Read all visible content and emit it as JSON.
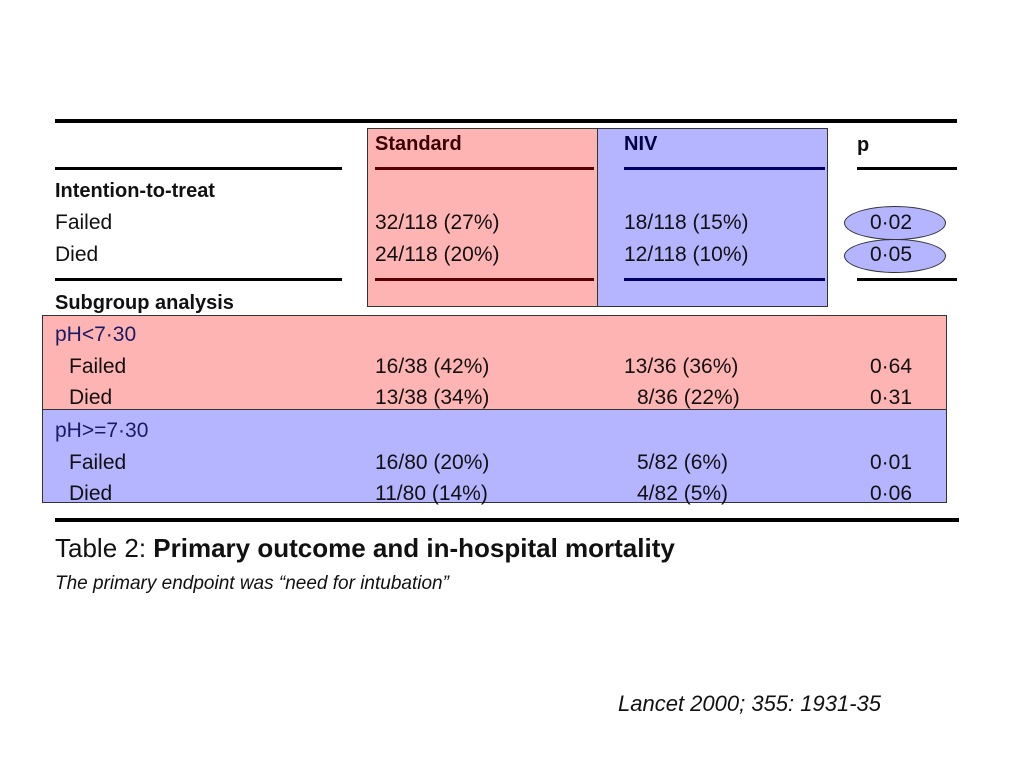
{
  "colors": {
    "standard_fill": "#ffb4b4",
    "niv_fill": "#b4b4ff",
    "standard_line": "#5a0000",
    "niv_line": "#000066"
  },
  "headers": {
    "standard": "Standard",
    "niv": "NIV",
    "p": "p"
  },
  "itt": {
    "title": "Intention-to-treat",
    "rows": [
      {
        "label": "Failed",
        "standard": "32/118 (27%)",
        "niv": "18/118 (15%)",
        "p": "0·02"
      },
      {
        "label": "Died",
        "standard": "24/118 (20%)",
        "niv": "12/118 (10%)",
        "p": "0·05"
      }
    ]
  },
  "subgroup": {
    "title": "Subgroup analysis",
    "groups": [
      {
        "label": "pH<7·30",
        "rows": [
          {
            "label": "Failed",
            "standard": "16/38 (42%)",
            "niv": "13/36 (36%)",
            "p": "0·64"
          },
          {
            "label": "Died",
            "standard": "13/38 (34%)",
            "niv": "8/36 (22%)",
            "p": "0·31"
          }
        ]
      },
      {
        "label": "pH>=7·30",
        "rows": [
          {
            "label": "Failed",
            "standard": "16/80 (20%)",
            "niv": "5/82 (6%)",
            "p": "0·01"
          },
          {
            "label": "Died",
            "standard": "11/80 (14%)",
            "niv": "4/82 (5%)",
            "p": "0·06"
          }
        ]
      }
    ]
  },
  "caption": {
    "prefix": "Table 2: ",
    "title": "Primary outcome and in-hospital mortality"
  },
  "note": "The primary endpoint was “need for intubation”",
  "citation": "Lancet 2000; 355: 1931-35"
}
